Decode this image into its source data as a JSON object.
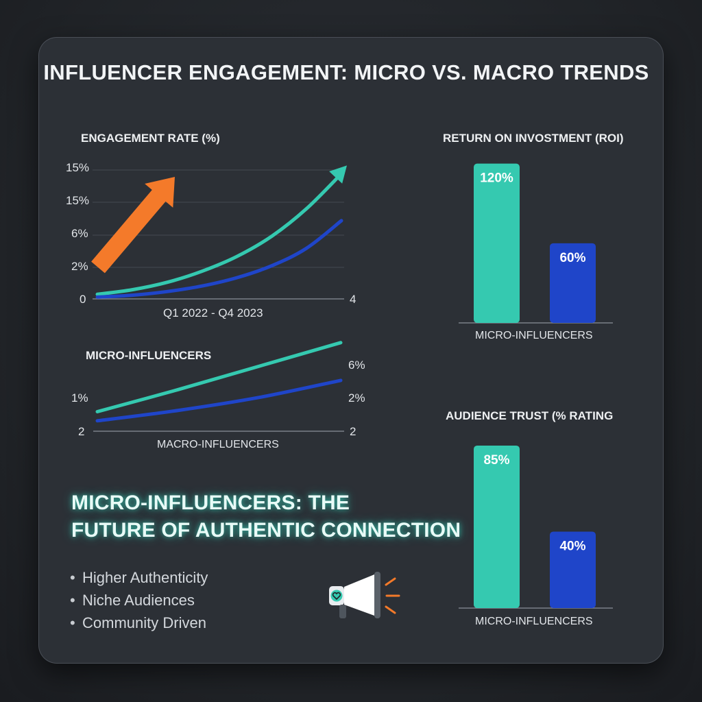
{
  "title": "INFLUENCER ENGAGEMENT: MICRO VS. MACRO TRENDS",
  "colors": {
    "micro": "#35c9b0",
    "macro": "#1f45c9",
    "arrow": "#f47a2a",
    "background": "#2c3036"
  },
  "headline": {
    "line1": "MICRO-INFLUENCERS: THE",
    "line2": "FUTURE OF AUTHENTIC CONNECTION"
  },
  "bullets": [
    "Higher Authenticity",
    "Niche Audiences",
    "Community Driven"
  ],
  "icons": {
    "megaphone": "megaphone-heart-icon",
    "trend": "up-arrow-icon"
  },
  "chart_data": [
    {
      "type": "line",
      "title": "ENGAGEMENT RATE (%)",
      "y_tick_labels": [
        "15%",
        "15%",
        "6%",
        "2%",
        "0"
      ],
      "right_tick_labels": [
        "4"
      ],
      "xlabel": "Q1 2022 - Q4 2023",
      "x": [
        0,
        1,
        2,
        3,
        4,
        5,
        6,
        7
      ],
      "series": [
        {
          "values": [
            0.5,
            1.0,
            1.8,
            3.0,
            4.6,
            6.8,
            9.8,
            13.6
          ]
        },
        {
          "values": [
            0.2,
            0.4,
            0.8,
            1.4,
            2.3,
            3.6,
            5.5,
            8.5
          ]
        }
      ],
      "grid": true,
      "annotation": "up-arrow"
    },
    {
      "type": "line",
      "title": "MICRO-INFLUENCERS",
      "y_tick_labels": [
        "1%",
        "2"
      ],
      "right_tick_labels": [
        "6%",
        "2%",
        "2"
      ],
      "xlabel": "MACRO-INFLUENCERS",
      "x": [
        0,
        1,
        2,
        3
      ],
      "series": [
        {
          "values": [
            1.5,
            3.2,
            5.0,
            6.8
          ]
        },
        {
          "values": [
            0.8,
            1.6,
            2.6,
            3.9
          ]
        }
      ],
      "grid": false
    },
    {
      "type": "bar",
      "title": "RETURN ON INVOSTMENT (ROI)",
      "categories": [
        "MICRO-INFLUENCERS",
        ""
      ],
      "values": [
        120,
        60
      ],
      "data_labels": [
        "120%",
        "60%"
      ],
      "ylim": [
        0,
        125
      ]
    },
    {
      "type": "bar",
      "title": "AUDIENCE TRUST (% RATING",
      "categories": [
        "MICRO-INFLUENCERS",
        ""
      ],
      "values": [
        85,
        40
      ],
      "data_labels": [
        "85%",
        "40%"
      ],
      "ylim": [
        0,
        90
      ]
    }
  ]
}
